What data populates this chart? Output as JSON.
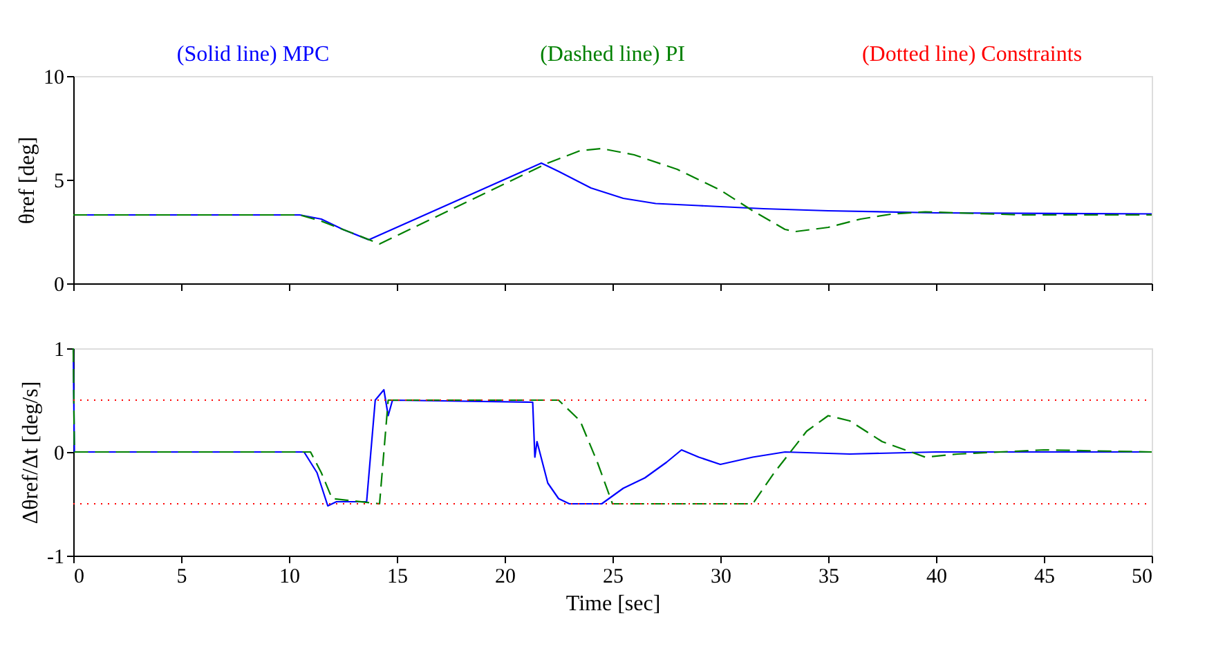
{
  "chart_data": [
    {
      "type": "line",
      "ylabel": "θref [deg]",
      "xlim": [
        0,
        50
      ],
      "xticks": [
        0,
        5,
        10,
        15,
        20,
        25,
        30,
        35,
        40,
        45,
        50
      ],
      "ylim": [
        0,
        10
      ],
      "yticks": [
        0,
        5,
        10
      ],
      "tick_labels": "y",
      "grid": false,
      "legend": "top",
      "marker": "none",
      "series": [
        {
          "name": "(Solid line) MPC",
          "color": "#0000ff",
          "line_style": "solid",
          "x": [
            0,
            10.5,
            11.5,
            12.5,
            13.7,
            21.7,
            22.5,
            24,
            25.5,
            27,
            29,
            32,
            35,
            40,
            50
          ],
          "values": [
            3.3,
            3.3,
            3.1,
            2.6,
            2.1,
            5.8,
            5.4,
            4.6,
            4.1,
            3.85,
            3.75,
            3.6,
            3.5,
            3.4,
            3.35
          ]
        },
        {
          "name": "(Dashed line) PI",
          "color": "#008000",
          "line_style": "dashed",
          "x": [
            0,
            10.5,
            11.5,
            13,
            14.2,
            22,
            23.5,
            24.5,
            26,
            28,
            30,
            31.5,
            33,
            33.5,
            35,
            36.5,
            38,
            39.5,
            41,
            44,
            50
          ],
          "values": [
            3.3,
            3.3,
            3.0,
            2.4,
            1.9,
            5.8,
            6.4,
            6.5,
            6.2,
            5.5,
            4.5,
            3.5,
            2.6,
            2.5,
            2.7,
            3.1,
            3.35,
            3.45,
            3.4,
            3.3,
            3.3
          ]
        }
      ]
    },
    {
      "type": "line",
      "xlabel": "Time [sec]",
      "ylabel": "Δθref/Δt [deg/s]",
      "xlim": [
        0,
        50
      ],
      "xticks": [
        0,
        5,
        10,
        15,
        20,
        25,
        30,
        35,
        40,
        45,
        50
      ],
      "ylim": [
        -1,
        1
      ],
      "yticks": [
        -1,
        0,
        1
      ],
      "grid": false,
      "legend": "top",
      "marker": "none",
      "series": [
        {
          "color": "#0000ff",
          "line_style": "solid",
          "x": [
            0,
            0.05,
            10.7,
            11.3,
            11.8,
            12.2,
            13.6,
            14,
            14.4,
            14.6,
            14.8,
            21.3,
            21.4,
            21.5,
            22,
            22.5,
            23,
            24.5,
            25.5,
            26.5,
            27.5,
            28.2,
            29,
            30,
            31.5,
            33,
            36,
            40,
            50
          ],
          "values": [
            1,
            0,
            0,
            -0.2,
            -0.52,
            -0.48,
            -0.48,
            0.5,
            0.6,
            0.35,
            0.5,
            0.48,
            -0.05,
            0.1,
            -0.3,
            -0.45,
            -0.5,
            -0.5,
            -0.35,
            -0.25,
            -0.1,
            0.02,
            -0.05,
            -0.12,
            -0.05,
            0,
            -0.02,
            0,
            0
          ]
        },
        {
          "color": "#008000",
          "line_style": "dashed",
          "x": [
            0,
            0.05,
            11,
            11.5,
            12,
            14.2,
            14.6,
            22.5,
            23.5,
            24.3,
            25,
            31.5,
            32.5,
            34,
            35,
            36,
            37.5,
            39.5,
            41,
            45,
            50
          ],
          "values": [
            1,
            0,
            0,
            -0.2,
            -0.45,
            -0.5,
            0.5,
            0.5,
            0.3,
            -0.1,
            -0.5,
            -0.5,
            -0.2,
            0.2,
            0.35,
            0.3,
            0.1,
            -0.05,
            -0.02,
            0.02,
            0
          ]
        },
        {
          "name": "(Dotted line) Constraints",
          "color": "#ff0000",
          "line_style": "dotted",
          "x": [
            0,
            50
          ],
          "values": [
            0.5,
            0.5
          ]
        },
        {
          "color": "#ff0000",
          "line_style": "dotted",
          "x": [
            0,
            50
          ],
          "values": [
            -0.5,
            -0.5
          ]
        }
      ]
    }
  ]
}
